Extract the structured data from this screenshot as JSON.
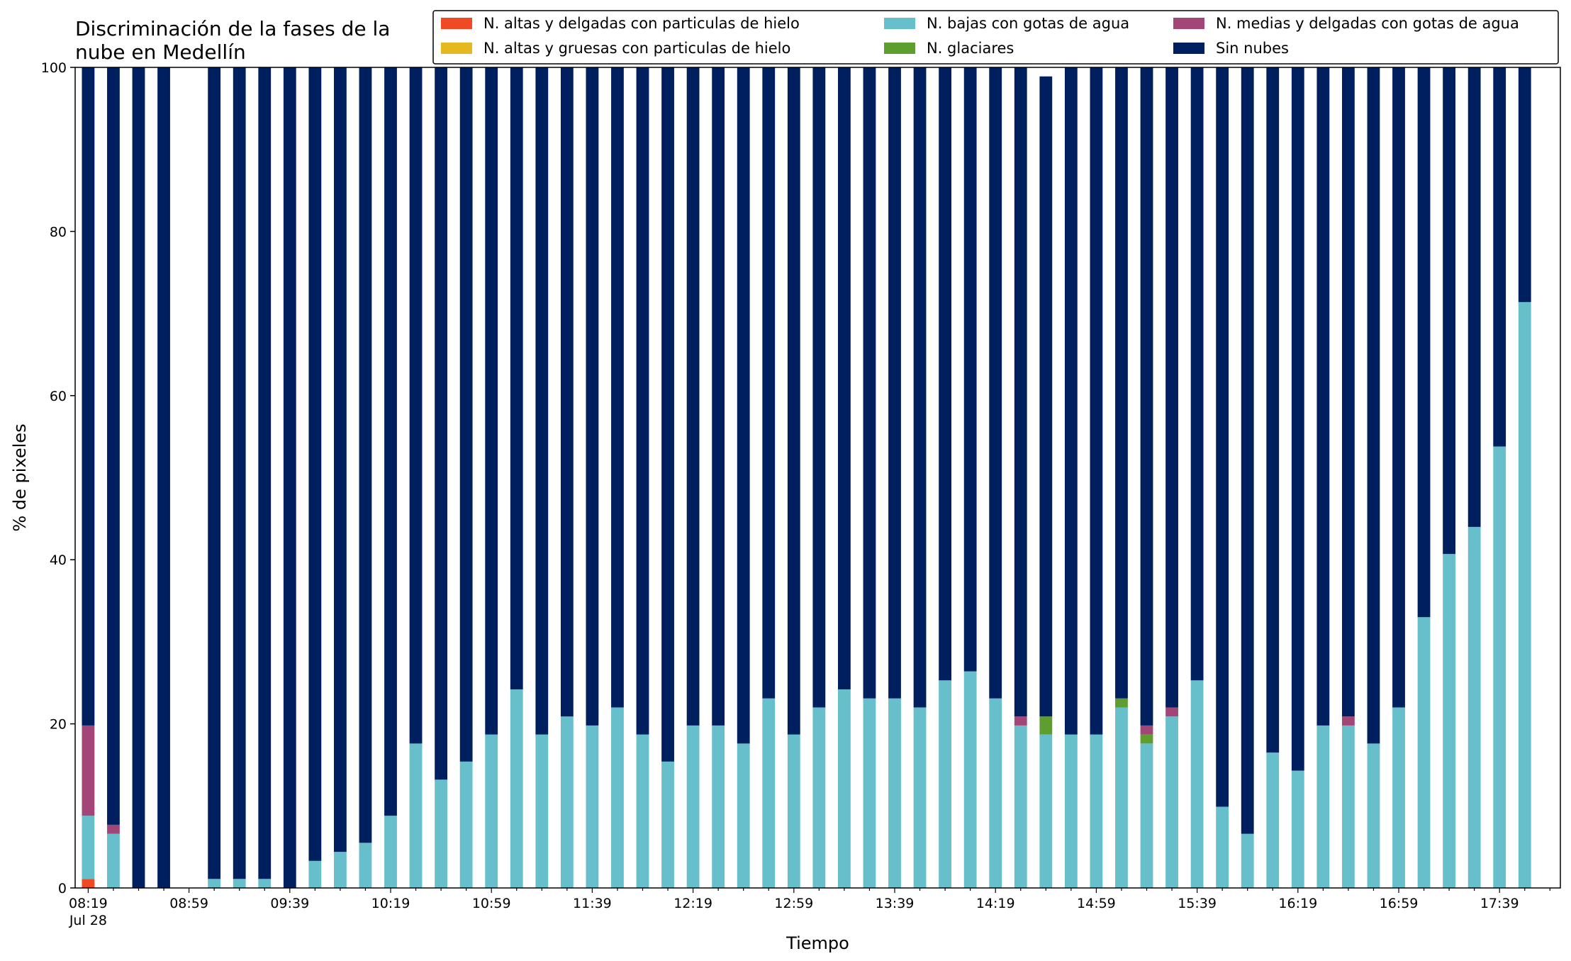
{
  "chart_data": {
    "type": "bar",
    "stacked": true,
    "title_lines": [
      "Discriminación de la fases de la",
      "nube en Medellín"
    ],
    "xlabel": "Tiempo",
    "ylabel": "% de pixeles",
    "ylim": [
      0,
      100
    ],
    "yticks": [
      "0",
      "20",
      "40",
      "60",
      "80",
      "100"
    ],
    "xtick_labels": [
      "08:19",
      "08:59",
      "09:39",
      "10:19",
      "10:59",
      "11:39",
      "12:19",
      "12:59",
      "13:39",
      "14:19",
      "14:59",
      "15:39",
      "16:19",
      "16:59",
      "17:39"
    ],
    "xtick_sublabel": "Jul 28",
    "grid": false,
    "legend_placement": "top-right",
    "series": [
      {
        "name": "N. altas y delgadas con particulas de hielo",
        "color": "#f04a25",
        "values": [
          1.1,
          0,
          0,
          0,
          0,
          0,
          0,
          0,
          0,
          0,
          0,
          0,
          0,
          0,
          0,
          0,
          0,
          0,
          0,
          0,
          0,
          0,
          0,
          0,
          0,
          0,
          0,
          0,
          0,
          0,
          0,
          0,
          0,
          0,
          0,
          0,
          0,
          0,
          0,
          0,
          0,
          0,
          0,
          0,
          0,
          0,
          0,
          0,
          0,
          0,
          0,
          0,
          0,
          0,
          0,
          0,
          0,
          0
        ]
      },
      {
        "name": "N. altas y gruesas con particulas de hielo",
        "color": "#e6b81f",
        "values": [
          0,
          0,
          0,
          0,
          0,
          0,
          0,
          0,
          0,
          0,
          0,
          0,
          0,
          0,
          0,
          0,
          0,
          0,
          0,
          0,
          0,
          0,
          0,
          0,
          0,
          0,
          0,
          0,
          0,
          0,
          0,
          0,
          0,
          0,
          0,
          0,
          0,
          0,
          0,
          0,
          0,
          0,
          0,
          0,
          0,
          0,
          0,
          0,
          0,
          0,
          0,
          0,
          0,
          0,
          0,
          0,
          0,
          0
        ]
      },
      {
        "name": "N. bajas con gotas de agua",
        "color": "#66bfcb",
        "values": [
          7.7,
          6.6,
          0,
          0,
          null,
          1.1,
          1.1,
          1.1,
          0,
          3.3,
          4.4,
          5.5,
          8.8,
          17.6,
          13.2,
          15.4,
          18.7,
          24.2,
          18.7,
          20.9,
          19.8,
          22.0,
          18.7,
          15.4,
          19.8,
          19.8,
          17.6,
          23.1,
          18.7,
          22.0,
          24.2,
          23.1,
          23.1,
          22.0,
          25.3,
          26.4,
          23.1,
          19.8,
          18.7,
          18.7,
          18.7,
          22.0,
          17.6,
          20.9,
          25.3,
          9.9,
          6.6,
          16.5,
          14.3,
          19.8,
          19.8,
          17.6,
          22.0,
          33.0,
          40.7,
          44.0,
          53.8,
          71.4
        ]
      },
      {
        "name": "N. glaciares",
        "color": "#5d9e2f",
        "values": [
          0,
          0,
          0,
          0,
          null,
          0,
          0,
          0,
          0,
          0,
          0,
          0,
          0,
          0,
          0,
          0,
          0,
          0,
          0,
          0,
          0,
          0,
          0,
          0,
          0,
          0,
          0,
          0,
          0,
          0,
          0,
          0,
          0,
          0,
          0,
          0,
          0,
          0,
          2.2,
          0,
          0,
          1.1,
          1.1,
          0,
          0,
          0,
          0,
          0,
          0,
          0,
          0,
          0,
          0,
          0,
          0,
          0,
          0,
          0
        ]
      },
      {
        "name": "N. medias y delgadas con gotas de agua",
        "color": "#a24577",
        "values": [
          11.0,
          1.1,
          0,
          0,
          null,
          0,
          0,
          0,
          0,
          0,
          0,
          0,
          0,
          0,
          0,
          0,
          0,
          0,
          0,
          0,
          0,
          0,
          0,
          0,
          0,
          0,
          0,
          0,
          0,
          0,
          0,
          0,
          0,
          0,
          0,
          0,
          0,
          1.1,
          0,
          0,
          0,
          0,
          1.1,
          1.1,
          0,
          0,
          0,
          0,
          0,
          0,
          1.1,
          0,
          0,
          0,
          0,
          0,
          0,
          0
        ]
      },
      {
        "name": "Sin nubes",
        "color": "#001f5e",
        "values": [
          80.2,
          92.3,
          100,
          100,
          null,
          98.9,
          98.9,
          98.9,
          100,
          96.7,
          95.6,
          94.5,
          91.2,
          82.4,
          86.8,
          84.6,
          81.3,
          75.8,
          81.3,
          79.1,
          80.2,
          78.0,
          81.3,
          84.6,
          80.2,
          80.2,
          82.4,
          76.9,
          81.3,
          78.0,
          75.8,
          76.9,
          76.9,
          78.0,
          74.7,
          73.6,
          76.9,
          79.1,
          78.0,
          81.3,
          81.3,
          76.9,
          80.2,
          78.0,
          74.7,
          90.1,
          93.4,
          83.5,
          85.7,
          80.2,
          79.1,
          82.4,
          78.0,
          67.0,
          59.3,
          56.0,
          46.2,
          28.6
        ]
      }
    ]
  }
}
